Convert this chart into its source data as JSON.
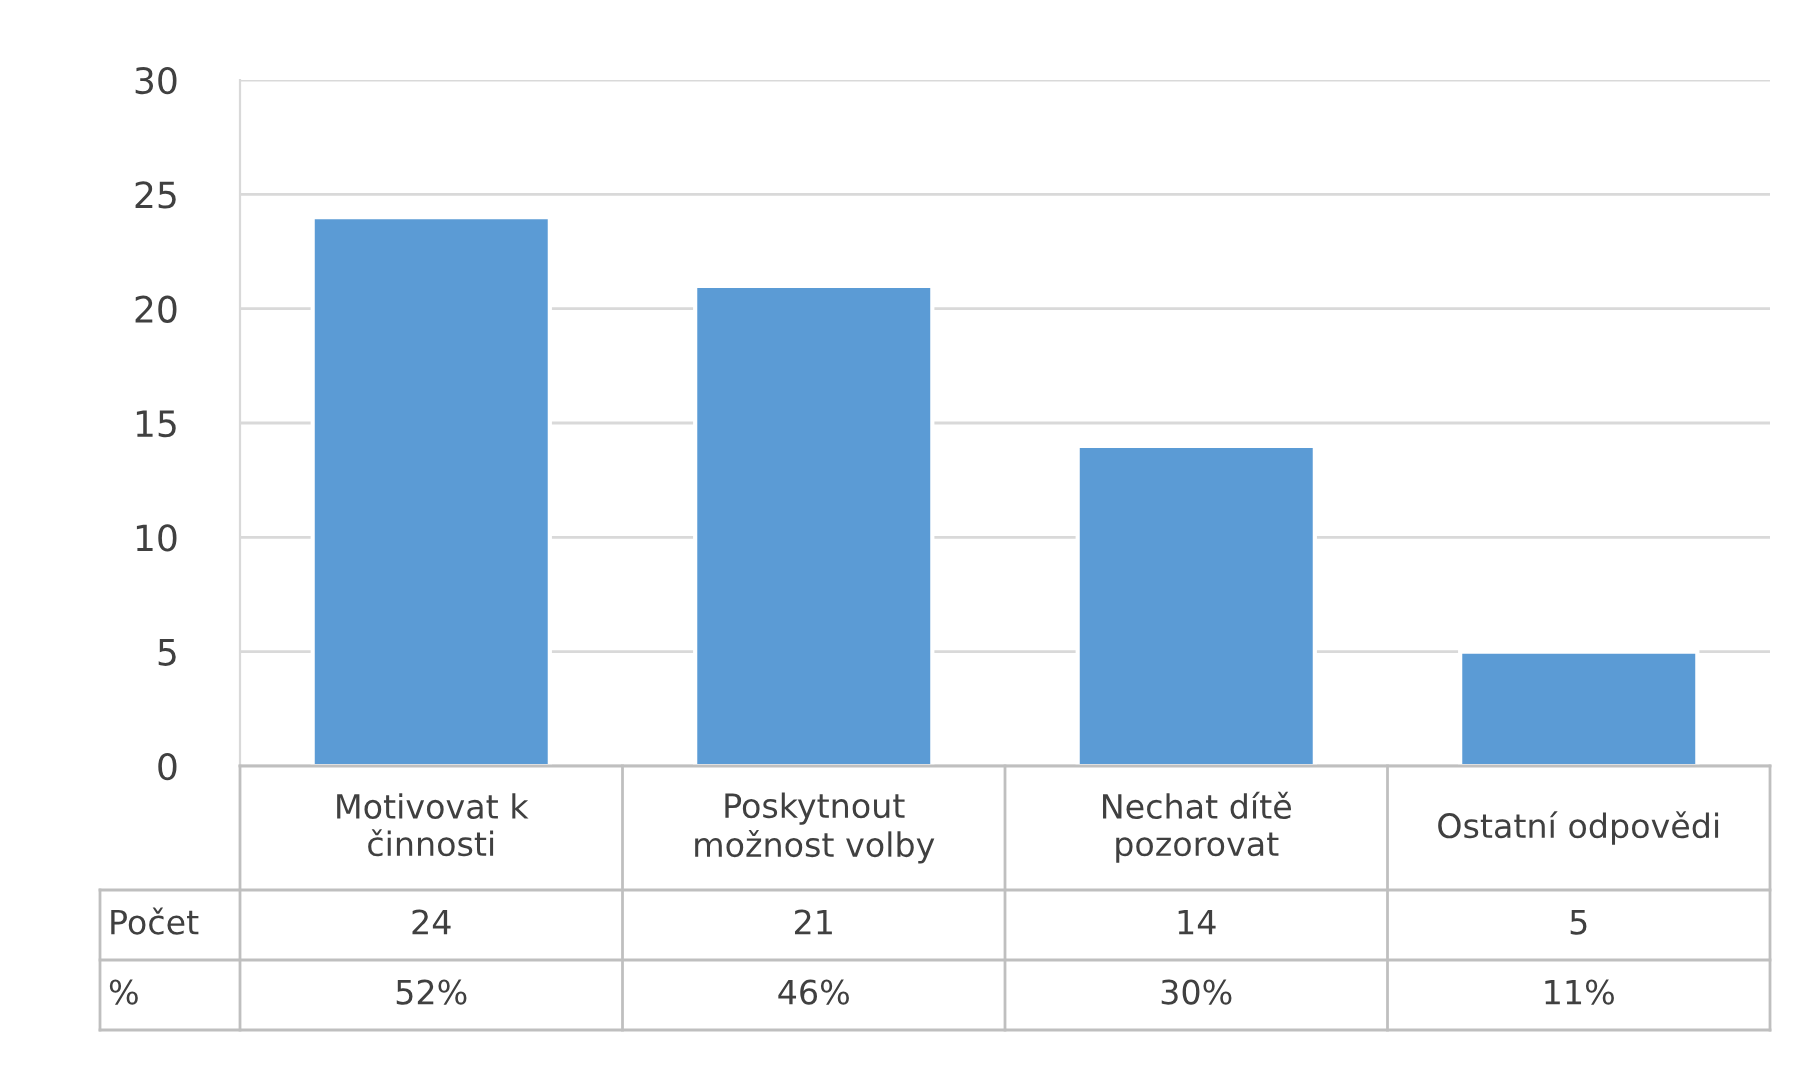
{
  "chart_data": {
    "type": "bar",
    "categories": [
      "Motivovat k činnosti",
      "Poskytnout možnost volby",
      "Nechat dítě pozorovat",
      "Ostatní odpovědi"
    ],
    "series": [
      {
        "name": "Počet",
        "color": "#5b9bd5",
        "values": [
          24,
          21,
          14,
          5
        ]
      }
    ],
    "data_labels": true,
    "annotations": [
      "%",
      "52%",
      "46%",
      "30%",
      "11%"
    ],
    "ylim": [
      0,
      30
    ],
    "yticks": [
      0,
      5,
      10,
      15,
      20,
      25,
      30
    ],
    "grid": "y",
    "legend": false
  }
}
